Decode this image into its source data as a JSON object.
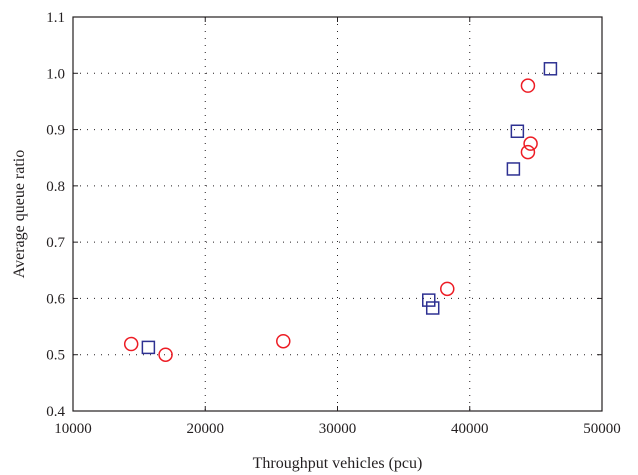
{
  "chart_data": {
    "type": "scatter",
    "title": "",
    "xlabel": "Throughput vehicles (pcu)",
    "ylabel": "Average queue ratio",
    "xlim": [
      10000,
      50000
    ],
    "ylim": [
      0.4,
      1.1
    ],
    "xticks": [
      10000,
      20000,
      30000,
      40000,
      50000
    ],
    "yticks": [
      0.4,
      0.5,
      0.6,
      0.7,
      0.8,
      0.9,
      1.0,
      1.1
    ],
    "xtick_labels": [
      "10000",
      "20000",
      "30000",
      "40000",
      "50000"
    ],
    "ytick_labels": [
      "0.4",
      "0.5",
      "0.6",
      "0.7",
      "0.8",
      "0.9",
      "1.0",
      "1.1"
    ],
    "grid": true,
    "legend": "none",
    "series": [
      {
        "marker": "square",
        "color": "#2e3192",
        "points": [
          {
            "x": 15700,
            "y": 0.513
          },
          {
            "x": 36900,
            "y": 0.597
          },
          {
            "x": 37200,
            "y": 0.583
          },
          {
            "x": 43300,
            "y": 0.83
          },
          {
            "x": 43600,
            "y": 0.897
          },
          {
            "x": 46100,
            "y": 1.008
          }
        ]
      },
      {
        "marker": "circle",
        "color": "#ed1c24",
        "points": [
          {
            "x": 14400,
            "y": 0.519
          },
          {
            "x": 17000,
            "y": 0.5
          },
          {
            "x": 25900,
            "y": 0.524
          },
          {
            "x": 38300,
            "y": 0.617
          },
          {
            "x": 44400,
            "y": 0.978
          },
          {
            "x": 44400,
            "y": 0.86
          },
          {
            "x": 44600,
            "y": 0.875
          }
        ]
      }
    ]
  }
}
